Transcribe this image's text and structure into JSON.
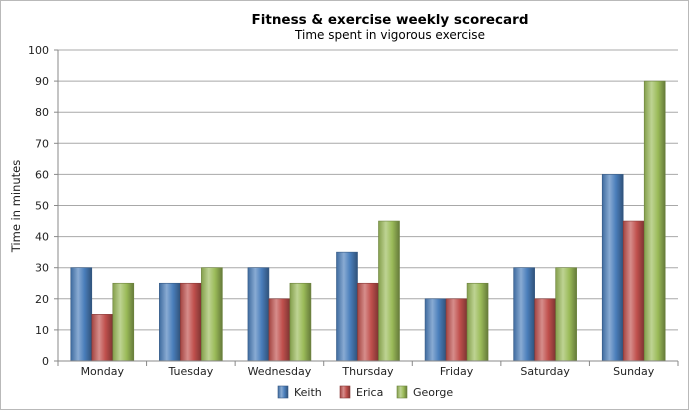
{
  "chart_data": {
    "type": "bar",
    "title": "Fitness & exercise weekly scorecard",
    "subtitle": "Time spent in vigorous exercise",
    "xlabel": "",
    "ylabel": "Time in minutes",
    "ylim": [
      0,
      100
    ],
    "yticks": [
      0,
      10,
      20,
      30,
      40,
      50,
      60,
      70,
      80,
      90,
      100
    ],
    "grid": true,
    "legend_position": "bottom",
    "categories": [
      "Monday",
      "Tuesday",
      "Wednesday",
      "Thursday",
      "Friday",
      "Saturday",
      "Sunday"
    ],
    "series": [
      {
        "name": "Keith",
        "color": "#4a7ebb",
        "values": [
          30,
          25,
          30,
          35,
          20,
          30,
          60
        ]
      },
      {
        "name": "Erica",
        "color": "#c0504d",
        "values": [
          15,
          25,
          20,
          25,
          20,
          20,
          45
        ]
      },
      {
        "name": "George",
        "color": "#9bbb59",
        "values": [
          25,
          30,
          25,
          45,
          25,
          30,
          90
        ]
      }
    ]
  }
}
